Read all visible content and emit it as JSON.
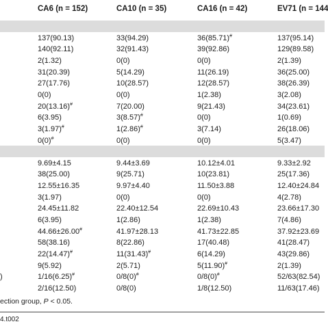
{
  "header": [
    "CA6 (n = 152)",
    "CA10 (n = 35)",
    "CA16 (n = 42)",
    "EV71 (n = 144"
  ],
  "rows": [
    {
      "c0": "",
      "c1": "",
      "c2": "",
      "c3": "",
      "c4": ""
    },
    {
      "c0": "",
      "c1": "137(90.13)",
      "c2": "33(94.29)",
      "c3": "36(85.71)#",
      "c4": "137(95.14)"
    },
    {
      "c0": "",
      "c1": "140(92.11)",
      "c2": "32(91.43)",
      "c3": "39(92.86)",
      "c4": "129(89.58)"
    },
    {
      "c0": "",
      "c1": "2(1.32)",
      "c2": "0(0)",
      "c3": "0(0)",
      "c4": "2(1.39)"
    },
    {
      "c0": "",
      "c1": "31(20.39)",
      "c2": "5(14.29)",
      "c3": "11(26.19)",
      "c4": "36(25.00)"
    },
    {
      "c0": "",
      "c1": "27(17.76)",
      "c2": "10(28.57)",
      "c3": "12(28.57)",
      "c4": "38(26.39)"
    },
    {
      "c0": "",
      "c1": "0(0)",
      "c2": "0(0)",
      "c3": "1(2.38)",
      "c4": "3(2.08)"
    },
    {
      "c0": "",
      "c1": "20(13.16)#",
      "c2": "7(20.00)",
      "c3": "9(21.43)",
      "c4": "34(23.61)"
    },
    {
      "c0": "",
      "c1": "6(3.95)",
      "c2": "3(8.57)#",
      "c3": "0(0)",
      "c4": "1(0.69)"
    },
    {
      "c0": "",
      "c1": "3(1.97)#",
      "c2": "1(2.86)#",
      "c3": "3(7.14)",
      "c4": "26(18.06)"
    },
    {
      "c0": "",
      "c1": "0(0)#",
      "c2": "0(0)",
      "c3": "0(0)",
      "c4": "5(3.47)"
    },
    {
      "c0": "",
      "c1": "",
      "c2": "",
      "c3": "",
      "c4": ""
    },
    {
      "c0": "",
      "c1": "9.69±4.15",
      "c2": "9.44±3.69",
      "c3": "10.12±4.01",
      "c4": "9.33±2.92"
    },
    {
      "c0": "",
      "c1": "38(25.00)",
      "c2": "9(25.71)",
      "c3": "10(23.81)",
      "c4": "25(17.36)"
    },
    {
      "c0": "",
      "c1": "12.55±16.35",
      "c2": "9.97±4.40",
      "c3": "11.50±3.88",
      "c4": "12.40±24.84"
    },
    {
      "c0": "",
      "c1": "3(1.97)",
      "c2": "0(0)",
      "c3": "0(0)",
      "c4": "4(2.78)"
    },
    {
      "c0": "",
      "c1": "24.45±11.82",
      "c2": "22.40±12.54",
      "c3": "22.69±10.43",
      "c4": "23.66±17.30"
    },
    {
      "c0": "",
      "c1": "6(3.95)",
      "c2": "1(2.86)",
      "c3": "1(2.38)",
      "c4": "7(4.86)"
    },
    {
      "c0": "",
      "c1": "44.66±26.00#",
      "c2": "41.97±28.13",
      "c3": "41.73±22.85",
      "c4": "37.92±23.69"
    },
    {
      "c0": "",
      "c1": "58(38.16)",
      "c2": "8(22.86)",
      "c3": "17(40.48)",
      "c4": "41(28.47)"
    },
    {
      "c0": "",
      "c1": "22(14.47)#",
      "c2": "11(31.43)#",
      "c3": "6(14.29)",
      "c4": "43(29.86)"
    },
    {
      "c0": "",
      "c1": "9(5.92)",
      "c2": "2(5.71)",
      "c3": "5(11.90)#",
      "c4": "2(1.39)"
    },
    {
      "c0": ")",
      "c1": "1/16(6.25)#",
      "c2": "0/8(0)#",
      "c3": "0/8(0)#",
      "c4": "52/63(82.54)"
    },
    {
      "c0": "",
      "c1": "2/16(12.50)",
      "c2": "0/8(0)",
      "c3": "1/8(12.50)",
      "c4": "11/63(17.46)"
    }
  ],
  "footnote_pre": "ection group, ",
  "footnote_p": "P",
  "footnote_post": " < 0.05.",
  "doi_suffix": "4.t002"
}
